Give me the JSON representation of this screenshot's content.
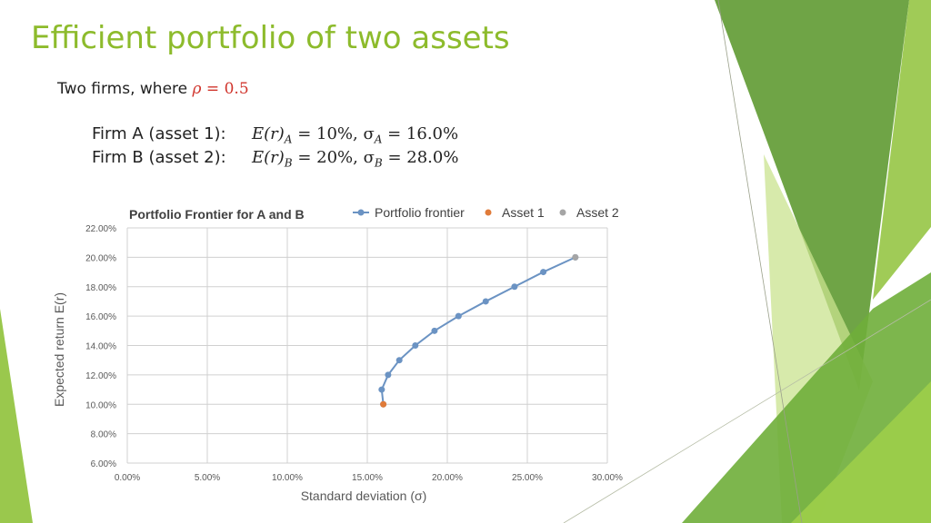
{
  "slide": {
    "title": "Efficient portfolio of two assets",
    "intro_prefix": "Two firms, where ",
    "rho_symbol": "ρ",
    "rho_equals": " = ",
    "rho_value": "0.5",
    "firm_a": {
      "label": "Firm A (asset 1):",
      "equation": "E(r)A = 10%, σA = 16.0%",
      "er": "E(r)",
      "sub": "A",
      "mid": " = 10%, σ",
      "sub2": "A",
      "tail": " = 16.0%"
    },
    "firm_b": {
      "label": "Firm B (asset 2):",
      "equation": "E(r)B = 20%, σB = 28.0%",
      "er": "E(r)",
      "sub": "B",
      "mid": " = 20%, σ",
      "sub2": "B",
      "tail": " = 28.0%"
    }
  },
  "colors": {
    "title": "#8dbb2c",
    "frontier": "#6b93c3",
    "asset1": "#e07b39",
    "asset2": "#a5a5a5",
    "grid": "#d0d0d0",
    "decor_green_dark": "#5f9a32",
    "decor_green": "#8fc23a",
    "decor_green_light": "#c9e38f"
  },
  "chart_data": {
    "type": "scatter",
    "title": "Portfolio Frontier for A and B",
    "xlabel": "Standard deviation (σ)",
    "ylabel": "Expected return E(r)",
    "xlim": [
      0,
      30
    ],
    "ylim": [
      6,
      22
    ],
    "x_ticks": [
      "0.00%",
      "5.00%",
      "10.00%",
      "15.00%",
      "20.00%",
      "25.00%",
      "30.00%"
    ],
    "y_ticks": [
      "6.00%",
      "8.00%",
      "10.00%",
      "12.00%",
      "14.00%",
      "16.00%",
      "18.00%",
      "20.00%",
      "22.00%"
    ],
    "grid": true,
    "legend_position": "top-right",
    "series": [
      {
        "name": "Portfolio frontier",
        "style": "line-with-markers",
        "x": [
          16.0,
          15.9,
          16.3,
          17.0,
          18.0,
          19.2,
          20.7,
          22.4,
          24.2,
          26.0,
          28.0
        ],
        "y": [
          10,
          11,
          12,
          13,
          14,
          15,
          16,
          17,
          18,
          19,
          20
        ]
      },
      {
        "name": "Asset 1",
        "style": "marker",
        "x": [
          16.0
        ],
        "y": [
          10
        ]
      },
      {
        "name": "Asset 2",
        "style": "marker",
        "x": [
          28.0
        ],
        "y": [
          20
        ]
      }
    ]
  }
}
